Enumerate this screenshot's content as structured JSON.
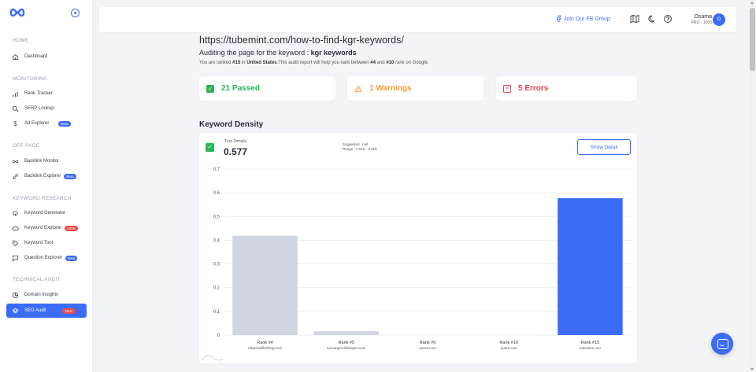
{
  "sidebar": {
    "sections": [
      {
        "title": "HOME",
        "items": [
          {
            "label": "Dashboard",
            "icon": "home-icon"
          }
        ]
      },
      {
        "title": "MONITORING",
        "items": [
          {
            "label": "Rank Tracker",
            "icon": "bar-chart-icon"
          },
          {
            "label": "SERP Lookup",
            "icon": "search-icon"
          },
          {
            "label": "Ad Explorer",
            "icon": "dollar-icon",
            "badge": "Beta"
          }
        ]
      },
      {
        "title": "OFF-PAGE",
        "items": [
          {
            "label": "Backlink Monitor",
            "icon": "infinity-icon"
          },
          {
            "label": "Backlink Explorer",
            "icon": "link-icon",
            "badge": "Beta"
          }
        ]
      },
      {
        "title": "KEYWORD RESEARCH",
        "items": [
          {
            "label": "Keyword Generator",
            "icon": "brain-icon"
          },
          {
            "label": "Keyword Explorer",
            "icon": "cloud-icon",
            "badge": "NEW"
          },
          {
            "label": "Keyword Tool",
            "icon": "tag-icon"
          },
          {
            "label": "Question Explorer",
            "icon": "chat-icon",
            "badge": "Beta"
          }
        ]
      },
      {
        "title": "TECHNICAL AUDIT",
        "items": [
          {
            "label": "Domain Insights",
            "icon": "pie-icon"
          },
          {
            "label": "SEO Audit",
            "icon": "layers-icon",
            "badge": "New",
            "active": true
          }
        ]
      }
    ]
  },
  "topbar": {
    "fb_group": "Join Our FB Group",
    "user_name": "Osama",
    "user_plan": "PRO - 1000",
    "avatar_initial": "O"
  },
  "header": {
    "url": "https://tubemint.com/how-to-find-kgr-keywords/",
    "audit_prefix": "Auditing the page for the keyword : ",
    "keyword": "kgr keywords",
    "rank_text_1": "You are ranked ",
    "rank_current": "#15",
    "rank_text_2": " in ",
    "country": "United States",
    "rank_text_3": ".This audit report will help you rank between ",
    "rank_low": "#4",
    "rank_text_4": " and ",
    "rank_high": "#10",
    "rank_text_5": " rank on Google."
  },
  "status": {
    "passed": "21 Passed",
    "warnings": "1 Warnings",
    "errors": "5 Errors"
  },
  "keyword_density": {
    "title": "Keyword Density",
    "density_label": "True Density",
    "density_value": "0.577",
    "suggested": "Suggested : null",
    "range": "Range : 0.016 - 0.419",
    "show_detail": "Show Detail"
  },
  "chart_data": {
    "type": "bar",
    "categories": [
      "Rank #4",
      "Rank #5",
      "Rank #9",
      "Rank #10",
      "Rank #15"
    ],
    "sublabels": [
      "robpowellbizblog.com",
      "humanproofdesigns.com",
      "quora.com",
      "quora.com",
      "tubemint.com"
    ],
    "values": [
      0.419,
      0.016,
      0,
      0,
      0.577
    ],
    "colors": [
      "#d1d6e3",
      "#d1d6e3",
      "#d1d6e3",
      "#d1d6e3",
      "#3b6cf6"
    ],
    "yticks": [
      "0",
      "0.1",
      "0.2",
      "0.3",
      "0.4",
      "0.5",
      "0.6",
      "0.7"
    ],
    "ylim": [
      0,
      0.7
    ],
    "grid": true
  }
}
